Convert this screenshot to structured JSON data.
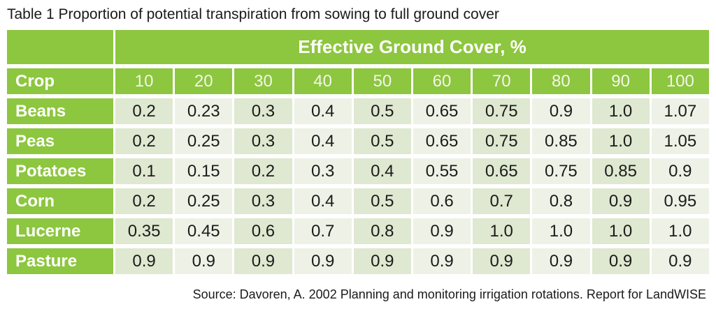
{
  "page": {
    "title": "Table 1 Proportion of potential transpiration from sowing to full ground cover",
    "source": "Source: Davoren, A. 2002 Planning and monitoring irrigation rotations. Report for LandWISE"
  },
  "table": {
    "span_header": "Effective Ground Cover, %",
    "crop_column_header": "Crop",
    "ground_cover_percents": [
      "10",
      "20",
      "30",
      "40",
      "50",
      "60",
      "70",
      "80",
      "90",
      "100"
    ],
    "rows": [
      {
        "crop": "Beans",
        "values": [
          "0.2",
          "0.23",
          "0.3",
          "0.4",
          "0.5",
          "0.65",
          "0.75",
          "0.9",
          "1.0",
          "1.07"
        ]
      },
      {
        "crop": "Peas",
        "values": [
          "0.2",
          "0.25",
          "0.3",
          "0.4",
          "0.5",
          "0.65",
          "0.75",
          "0.85",
          "1.0",
          "1.05"
        ]
      },
      {
        "crop": "Potatoes",
        "values": [
          "0.1",
          "0.15",
          "0.2",
          "0.3",
          "0.4",
          "0.55",
          "0.65",
          "0.75",
          "0.85",
          "0.9"
        ]
      },
      {
        "crop": "Corn",
        "values": [
          "0.2",
          "0.25",
          "0.3",
          "0.4",
          "0.5",
          "0.6",
          "0.7",
          "0.8",
          "0.9",
          "0.95"
        ]
      },
      {
        "crop": "Lucerne",
        "values": [
          "0.35",
          "0.45",
          "0.6",
          "0.7",
          "0.8",
          "0.9",
          "1.0",
          "1.0",
          "1.0",
          "1.0"
        ]
      },
      {
        "crop": "Pasture",
        "values": [
          "0.9",
          "0.9",
          "0.9",
          "0.9",
          "0.9",
          "0.9",
          "0.9",
          "0.9",
          "0.9",
          "0.9"
        ]
      }
    ]
  },
  "colors": {
    "header_green": "#8dc63f",
    "band_dark": "#dfe8d0",
    "band_light": "#eef2e6",
    "text_dark": "#1a1a1a",
    "header_text": "#ffffff",
    "subhead_text": "#f2f6e9"
  }
}
